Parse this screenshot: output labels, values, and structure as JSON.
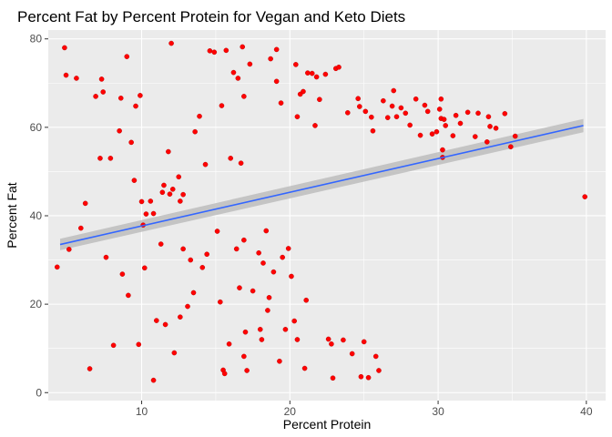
{
  "chart_data": {
    "type": "scatter",
    "title": "Percent Fat by Percent Protein for Vegan and Keto Diets",
    "xlabel": "Percent Protein",
    "ylabel": "Percent Fat",
    "xlim": [
      3.7,
      41.3
    ],
    "ylim": [
      -1.8,
      82
    ],
    "xticks": [
      10,
      20,
      30,
      40
    ],
    "yticks": [
      0,
      20,
      40,
      60,
      80
    ],
    "grid": true,
    "legend": "none",
    "colors": {
      "panel": "#ebebeb",
      "grid_major": "#ffffff",
      "point": "#ff0000",
      "point_edge": "#b30000",
      "fit_line": "#3366ff",
      "ribbon": "#bdbdbd"
    },
    "trend": {
      "method": "linear",
      "x": [
        4.5,
        39.8
      ],
      "y": [
        33.5,
        60.4
      ],
      "ci_low": [
        32.2,
        58.9
      ],
      "ci_high": [
        34.8,
        61.9
      ]
    },
    "series": [
      {
        "points": [
          [
            4.3,
            28.4
          ],
          [
            4.8,
            78.0
          ],
          [
            4.9,
            71.8
          ],
          [
            5.1,
            32.4
          ],
          [
            5.6,
            71.1
          ],
          [
            5.9,
            37.2
          ],
          [
            6.2,
            42.8
          ],
          [
            6.5,
            5.4
          ],
          [
            6.9,
            67.0
          ],
          [
            7.2,
            53.0
          ],
          [
            7.3,
            70.9
          ],
          [
            7.4,
            68.0
          ],
          [
            7.6,
            30.6
          ],
          [
            7.9,
            53.0
          ],
          [
            8.1,
            10.7
          ],
          [
            8.5,
            59.2
          ],
          [
            8.6,
            66.6
          ],
          [
            8.7,
            26.8
          ],
          [
            9.0,
            76.0
          ],
          [
            9.1,
            22.0
          ],
          [
            9.3,
            56.6
          ],
          [
            9.5,
            48.0
          ],
          [
            9.6,
            64.8
          ],
          [
            9.8,
            10.9
          ],
          [
            9.9,
            67.2
          ],
          [
            10.0,
            43.2
          ],
          [
            10.1,
            37.9
          ],
          [
            10.2,
            28.2
          ],
          [
            10.3,
            40.4
          ],
          [
            10.6,
            43.3
          ],
          [
            10.8,
            2.8
          ],
          [
            10.8,
            40.5
          ],
          [
            11.0,
            16.3
          ],
          [
            11.3,
            33.6
          ],
          [
            11.5,
            46.9
          ],
          [
            11.4,
            45.3
          ],
          [
            11.6,
            15.4
          ],
          [
            11.8,
            54.5
          ],
          [
            11.9,
            44.9
          ],
          [
            12.0,
            79.0
          ],
          [
            12.1,
            46.0
          ],
          [
            12.2,
            9.0
          ],
          [
            12.5,
            48.8
          ],
          [
            12.6,
            43.3
          ],
          [
            12.6,
            17.1
          ],
          [
            12.8,
            32.5
          ],
          [
            12.8,
            44.8
          ],
          [
            13.1,
            19.5
          ],
          [
            13.3,
            30.0
          ],
          [
            13.5,
            22.6
          ],
          [
            13.6,
            59.0
          ],
          [
            13.9,
            62.5
          ],
          [
            14.1,
            28.3
          ],
          [
            14.3,
            51.6
          ],
          [
            14.4,
            31.3
          ],
          [
            14.6,
            77.3
          ],
          [
            14.9,
            77.0
          ],
          [
            15.1,
            36.5
          ],
          [
            15.3,
            20.5
          ],
          [
            15.4,
            64.9
          ],
          [
            15.5,
            5.1
          ],
          [
            15.6,
            4.3
          ],
          [
            15.7,
            77.4
          ],
          [
            15.9,
            11.0
          ],
          [
            16.0,
            53.0
          ],
          [
            16.2,
            72.4
          ],
          [
            16.4,
            32.5
          ],
          [
            16.5,
            71.1
          ],
          [
            16.6,
            23.7
          ],
          [
            16.7,
            51.9
          ],
          [
            16.8,
            78.2
          ],
          [
            16.9,
            67.0
          ],
          [
            16.9,
            34.5
          ],
          [
            16.9,
            8.2
          ],
          [
            17.0,
            13.7
          ],
          [
            17.1,
            5.0
          ],
          [
            17.3,
            74.3
          ],
          [
            17.5,
            23.0
          ],
          [
            17.9,
            31.6
          ],
          [
            18.0,
            14.3
          ],
          [
            18.1,
            12.0
          ],
          [
            18.2,
            29.3
          ],
          [
            18.4,
            36.6
          ],
          [
            18.5,
            18.6
          ],
          [
            18.6,
            21.5
          ],
          [
            18.7,
            75.5
          ],
          [
            18.9,
            27.3
          ],
          [
            19.1,
            70.4
          ],
          [
            19.1,
            77.6
          ],
          [
            19.3,
            7.1
          ],
          [
            19.4,
            65.5
          ],
          [
            19.5,
            30.6
          ],
          [
            19.7,
            14.3
          ],
          [
            19.9,
            32.6
          ],
          [
            20.1,
            26.3
          ],
          [
            20.3,
            16.2
          ],
          [
            20.4,
            74.2
          ],
          [
            20.5,
            12.0
          ],
          [
            20.5,
            62.4
          ],
          [
            20.7,
            67.5
          ],
          [
            20.9,
            68.1
          ],
          [
            21.0,
            5.5
          ],
          [
            21.1,
            20.9
          ],
          [
            21.2,
            72.3
          ],
          [
            21.5,
            72.2
          ],
          [
            21.8,
            71.4
          ],
          [
            21.7,
            60.4
          ],
          [
            22.0,
            66.3
          ],
          [
            22.4,
            72.0
          ],
          [
            22.6,
            12.1
          ],
          [
            22.8,
            11.0
          ],
          [
            22.9,
            3.3
          ],
          [
            23.1,
            73.3
          ],
          [
            23.3,
            73.6
          ],
          [
            23.6,
            11.9
          ],
          [
            23.9,
            63.3
          ],
          [
            24.2,
            8.8
          ],
          [
            24.6,
            66.5
          ],
          [
            24.7,
            64.7
          ],
          [
            24.8,
            3.6
          ],
          [
            25.0,
            11.5
          ],
          [
            25.1,
            63.6
          ],
          [
            25.3,
            3.4
          ],
          [
            25.5,
            62.3
          ],
          [
            25.6,
            59.2
          ],
          [
            25.8,
            8.2
          ],
          [
            26.0,
            5.0
          ],
          [
            26.3,
            66.0
          ],
          [
            26.6,
            62.2
          ],
          [
            26.9,
            64.8
          ],
          [
            27.0,
            68.3
          ],
          [
            27.2,
            62.4
          ],
          [
            27.5,
            64.4
          ],
          [
            27.8,
            63.2
          ],
          [
            28.1,
            60.5
          ],
          [
            28.5,
            66.4
          ],
          [
            28.8,
            58.2
          ],
          [
            29.1,
            65.0
          ],
          [
            29.3,
            63.6
          ],
          [
            29.6,
            58.5
          ],
          [
            29.9,
            59.0
          ],
          [
            30.1,
            64.1
          ],
          [
            30.2,
            66.4
          ],
          [
            30.2,
            62.0
          ],
          [
            30.3,
            54.9
          ],
          [
            30.3,
            53.2
          ],
          [
            30.4,
            61.8
          ],
          [
            30.5,
            60.4
          ],
          [
            31.0,
            58.1
          ],
          [
            31.2,
            62.7
          ],
          [
            31.5,
            60.9
          ],
          [
            32.0,
            63.4
          ],
          [
            32.5,
            57.9
          ],
          [
            32.7,
            63.2
          ],
          [
            33.3,
            56.7
          ],
          [
            33.4,
            62.4
          ],
          [
            33.5,
            60.2
          ],
          [
            33.9,
            59.8
          ],
          [
            34.5,
            63.1
          ],
          [
            34.9,
            55.6
          ],
          [
            35.2,
            58.0
          ],
          [
            39.9,
            44.3
          ]
        ]
      }
    ]
  }
}
